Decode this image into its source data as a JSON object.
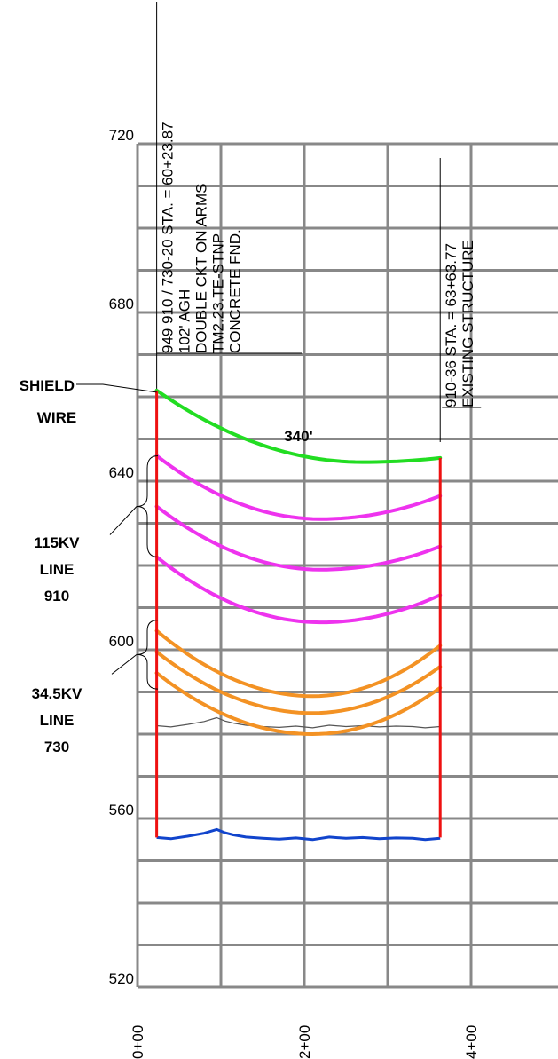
{
  "chart_data": {
    "type": "line",
    "title": "",
    "xlabel": "",
    "ylabel": "",
    "ylim": [
      520,
      720
    ],
    "xlim": [
      0,
      460
    ],
    "grid": true,
    "y_tick_labels": [
      "720",
      "680",
      "640",
      "600",
      "560",
      "520"
    ],
    "x_tick_labels": [
      "0+00",
      "2+00",
      "4+00"
    ],
    "x_tick_values": [
      0,
      200,
      400
    ],
    "span_label": "340'",
    "structures": [
      {
        "x": 23,
        "lines": [
          "949 910 / 730-20 STA. = 60+23.87",
          "102' AGH",
          "DOUBLE CKT ON ARMS",
          "TM2.23.TE-STNP",
          "CONCRETE FND."
        ]
      },
      {
        "x": 363,
        "lines": [
          "910-36 STA. = 63+63.77",
          "EXISTING STRUCTURE"
        ]
      }
    ],
    "pole_base_elev": 555.5,
    "series": [
      {
        "name": "",
        "color": "#22dd22",
        "x": [
          23,
          363
        ],
        "y_left": 661.5,
        "y_right": 645.5,
        "y_min": 644.5,
        "x_min": 270
      },
      {
        "name": "",
        "color": "#ee33ee",
        "x": [
          23,
          363
        ],
        "y_left": 646,
        "y_right": 636.5,
        "y_min": 631,
        "x_min": 220
      },
      {
        "name": "",
        "color": "#ee33ee",
        "x": [
          23,
          363
        ],
        "y_left": 634,
        "y_right": 624.5,
        "y_min": 619,
        "x_min": 220
      },
      {
        "name": "",
        "color": "#ee33ee",
        "x": [
          23,
          363
        ],
        "y_left": 622,
        "y_right": 613,
        "y_min": 606.5,
        "x_min": 220
      },
      {
        "name": "",
        "color": "#f39224",
        "x": [
          23,
          363
        ],
        "y_left": 604.5,
        "y_right": 601,
        "y_min": 589,
        "x_min": 210
      },
      {
        "name": "",
        "color": "#f39224",
        "x": [
          23,
          363
        ],
        "y_left": 599.5,
        "y_right": 596,
        "y_min": 585,
        "x_min": 210
      },
      {
        "name": "",
        "color": "#f39224",
        "x": [
          23,
          363
        ],
        "y_left": 594.5,
        "y_right": 591,
        "y_min": 580,
        "x_min": 210
      }
    ],
    "ground_profile": {
      "color": "#1144cc",
      "x": [
        23,
        40,
        60,
        80,
        95,
        105,
        115,
        130,
        150,
        170,
        190,
        210,
        230,
        250,
        270,
        290,
        310,
        330,
        345,
        363
      ],
      "y": [
        555.5,
        555.2,
        555.8,
        556.5,
        557.4,
        556.6,
        556.1,
        555.6,
        555.3,
        555.1,
        555.4,
        555.0,
        555.6,
        555.3,
        555.5,
        555.2,
        555.4,
        555.3,
        555.0,
        555.3
      ]
    },
    "clearance_profile": {
      "color": "#555555",
      "x": [
        23,
        40,
        60,
        80,
        95,
        105,
        115,
        130,
        150,
        170,
        190,
        210,
        230,
        250,
        270,
        290,
        310,
        330,
        345,
        363
      ],
      "y": [
        582.0,
        581.7,
        582.3,
        583.0,
        583.9,
        583.1,
        582.6,
        582.1,
        581.8,
        581.6,
        581.9,
        581.5,
        582.1,
        581.8,
        582.0,
        581.7,
        581.9,
        581.8,
        581.5,
        581.8
      ]
    },
    "callouts": [
      {
        "lines": [
          "SHIELD",
          "WIRE"
        ]
      },
      {
        "lines": [
          "115KV",
          "LINE",
          "910"
        ]
      },
      {
        "lines": [
          "34.5KV",
          "LINE",
          "730"
        ]
      }
    ]
  }
}
